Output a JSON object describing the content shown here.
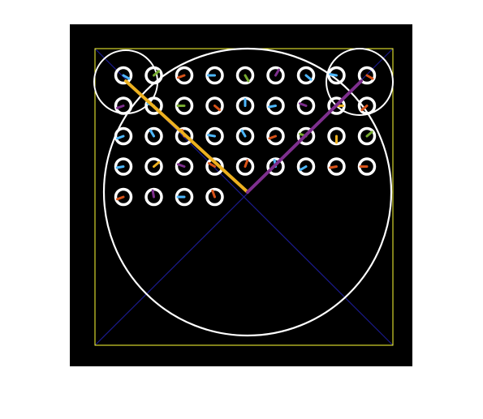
{
  "figure": {
    "background_color": "#ffffff",
    "panel_color": "#000000",
    "frame_color": "#ffff33",
    "diagonal_color": "#1a1a8c",
    "circle_color": "#ffffff",
    "ring_color": "#ffffff"
  },
  "rings": {
    "rows": [
      9,
      9,
      9,
      9,
      4
    ],
    "count": 40
  },
  "needle_palette": {
    "blue": "#4db8ff",
    "green": "#77ac30",
    "red": "#d95319",
    "orange": "#edb120",
    "purple": "#7e2f8e"
  },
  "needles": [
    {
      "color": "blue",
      "angle": -30
    },
    {
      "color": "green",
      "angle": 40
    },
    {
      "color": "red",
      "angle": 200
    },
    {
      "color": "blue",
      "angle": 180
    },
    {
      "color": "green",
      "angle": -60
    },
    {
      "color": "purple",
      "angle": 60
    },
    {
      "color": "blue",
      "angle": -40
    },
    {
      "color": "blue",
      "angle": 170
    },
    {
      "color": "red",
      "angle": -30
    },
    {
      "color": "purple",
      "angle": 200
    },
    {
      "color": "blue",
      "angle": 160
    },
    {
      "color": "green",
      "angle": 180
    },
    {
      "color": "red",
      "angle": -40
    },
    {
      "color": "blue",
      "angle": 90
    },
    {
      "color": "blue",
      "angle": 190
    },
    {
      "color": "purple",
      "angle": 160
    },
    {
      "color": "orange",
      "angle": 0
    },
    {
      "color": "red",
      "angle": 220
    },
    {
      "color": "blue",
      "angle": 200
    },
    {
      "color": "blue",
      "angle": 120
    },
    {
      "color": "red",
      "angle": 110
    },
    {
      "color": "blue",
      "angle": 170
    },
    {
      "color": "blue",
      "angle": 120
    },
    {
      "color": "red",
      "angle": 200
    },
    {
      "color": "green",
      "angle": 160
    },
    {
      "color": "orange",
      "angle": 270
    },
    {
      "color": "green",
      "angle": 40
    },
    {
      "color": "blue",
      "angle": 190
    },
    {
      "color": "orange",
      "angle": 40
    },
    {
      "color": "purple",
      "angle": 160
    },
    {
      "color": "red",
      "angle": 150
    },
    {
      "color": "red",
      "angle": 70
    },
    {
      "color": "blue",
      "angle": 100
    },
    {
      "color": "blue",
      "angle": 210
    },
    {
      "color": "red",
      "angle": 190
    },
    {
      "color": "red",
      "angle": 180
    },
    {
      "color": "red",
      "angle": 200
    },
    {
      "color": "purple",
      "angle": 100
    },
    {
      "color": "blue",
      "angle": 180
    },
    {
      "color": "red",
      "angle": 110
    }
  ],
  "pointers": [
    {
      "name": "orange-pointer",
      "color": "#edb120"
    },
    {
      "name": "purple-pointer",
      "color": "#7e2f8e"
    }
  ]
}
